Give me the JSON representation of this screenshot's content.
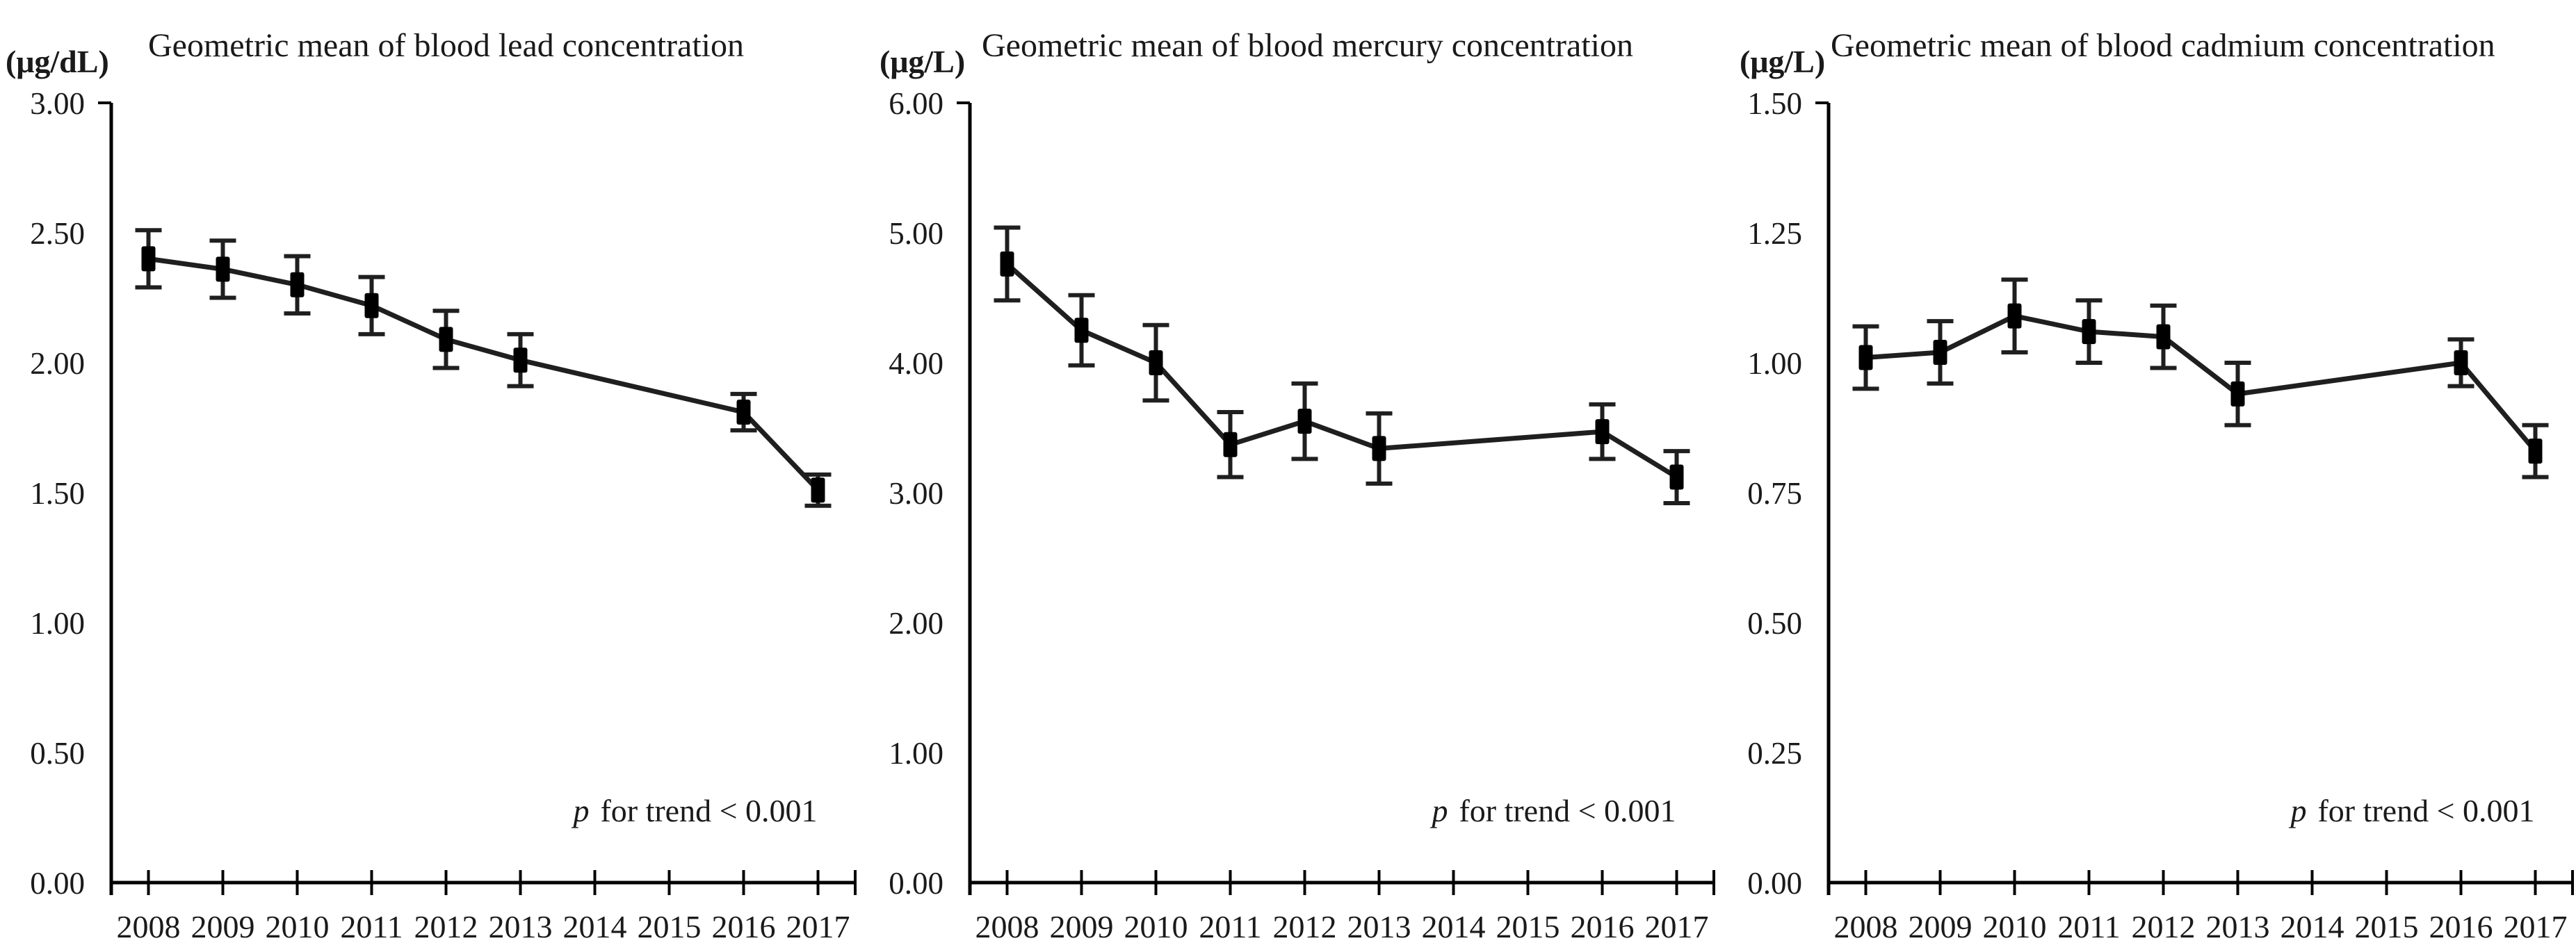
{
  "figure": {
    "background": "#ffffff",
    "text_color": "#1a1a1a",
    "axis_color": "#000000",
    "series_color": "#1f1f1f",
    "marker_color": "#000000"
  },
  "chart_data": [
    {
      "type": "line",
      "title": "Geometric mean of blood lead concentration",
      "unit": "(μg/dL)",
      "p_label": "p",
      "p_text": "for trend < 0.001",
      "categories": [
        "2008",
        "2009",
        "2010",
        "2011",
        "2012",
        "2013",
        "2014",
        "2015",
        "2016",
        "2017"
      ],
      "values": [
        2.4,
        2.36,
        2.3,
        2.22,
        2.09,
        2.01,
        null,
        null,
        1.81,
        1.51
      ],
      "errors": [
        0.11,
        0.11,
        0.11,
        0.11,
        0.11,
        0.1,
        null,
        null,
        0.07,
        0.06
      ],
      "ylim": [
        0,
        3.0
      ],
      "yticks": [
        "3.00",
        "2.50",
        "2.00",
        "1.50",
        "1.00",
        "0.50",
        "0.00"
      ],
      "grid": false,
      "marker": "square",
      "legend": null
    },
    {
      "type": "line",
      "title": "Geometric mean of blood mercury concentration",
      "unit": "(μg/L)",
      "p_label": "p",
      "p_text": "for trend < 0.001",
      "categories": [
        "2008",
        "2009",
        "2010",
        "2011",
        "2012",
        "2013",
        "2014",
        "2015",
        "2016",
        "2017"
      ],
      "values": [
        4.76,
        4.25,
        4.0,
        3.37,
        3.55,
        3.34,
        null,
        null,
        3.47,
        3.12
      ],
      "errors": [
        0.28,
        0.27,
        0.29,
        0.25,
        0.29,
        0.27,
        null,
        null,
        0.21,
        0.2
      ],
      "ylim": [
        0,
        6.0
      ],
      "yticks": [
        "6.00",
        "5.00",
        "4.00",
        "3.00",
        "2.00",
        "1.00",
        "0.00"
      ],
      "grid": false,
      "marker": "square",
      "legend": null
    },
    {
      "type": "line",
      "title": "Geometric mean of blood cadmium concentration",
      "unit": "(μg/L)",
      "p_label": "p",
      "p_text": "for trend < 0.001",
      "categories": [
        "2008",
        "2009",
        "2010",
        "2011",
        "2012",
        "2013",
        "2014",
        "2015",
        "2016",
        "2017"
      ],
      "values": [
        1.01,
        1.02,
        1.09,
        1.06,
        1.05,
        0.94,
        null,
        null,
        1.0,
        0.83
      ],
      "errors": [
        0.06,
        0.06,
        0.07,
        0.06,
        0.06,
        0.06,
        null,
        null,
        0.045,
        0.05
      ],
      "ylim": [
        0,
        1.5
      ],
      "yticks": [
        "1.50",
        "1.25",
        "1.00",
        "0.75",
        "0.50",
        "0.25",
        "0.00"
      ],
      "grid": false,
      "marker": "square",
      "legend": null
    }
  ]
}
